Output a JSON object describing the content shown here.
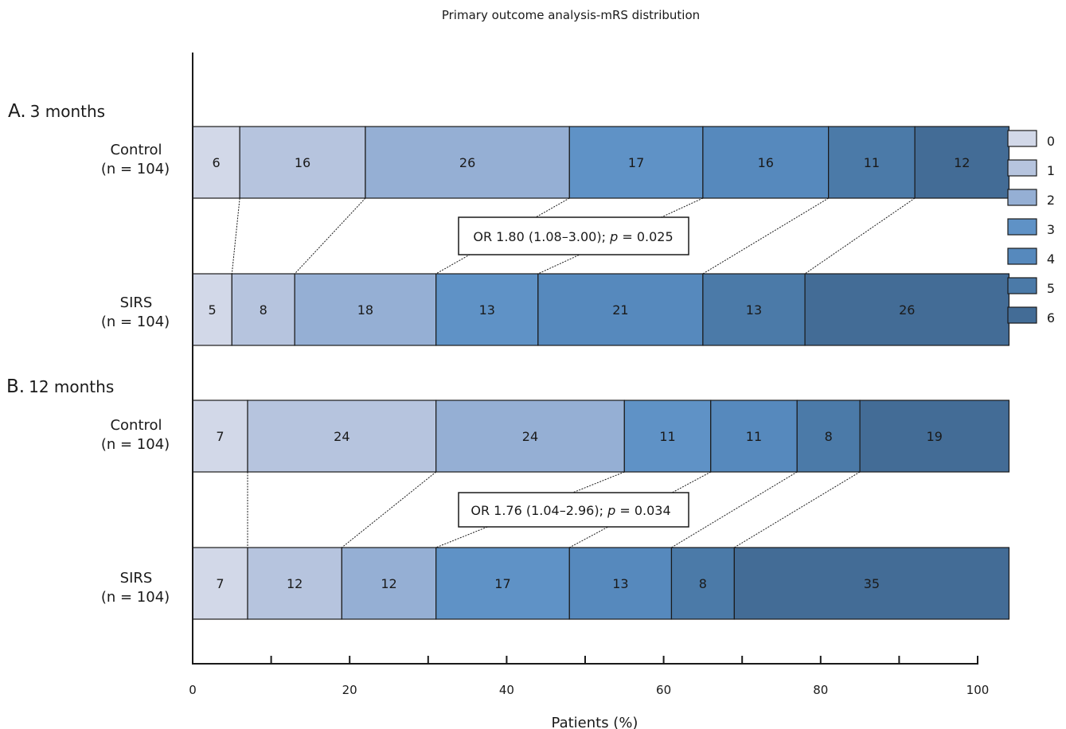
{
  "chart_data": {
    "type": "bar",
    "stacked": true,
    "orientation": "horizontal",
    "title": "Primary outcome analysis-mRS distribution",
    "xlabel": "Patients (%)",
    "xlim": [
      0,
      100
    ],
    "xticks": [
      "0",
      "20",
      "40",
      "60",
      "80",
      "100"
    ],
    "categories": [
      "0",
      "1",
      "2",
      "3",
      "4",
      "5",
      "6"
    ],
    "colors": [
      "#d2d8e8",
      "#b6c4de",
      "#95afd4",
      "#5f92c6",
      "#5689bd",
      "#4b7aa8",
      "#436c96"
    ],
    "legend_placement": "right",
    "panels": [
      {
        "letter": "A.",
        "label": "3 months",
        "or_text": "OR 1.80 (1.08–3.00); ",
        "p_label": "p",
        "p_text": " = 0.025",
        "groups": [
          {
            "name": "Control",
            "n": "(n = 104)",
            "values": [
              6,
              16,
              26,
              17,
              16,
              11,
              12
            ]
          },
          {
            "name": "SIRS",
            "n": "(n = 104)",
            "values": [
              5,
              8,
              18,
              13,
              21,
              13,
              26
            ]
          }
        ]
      },
      {
        "letter": "B.",
        "label": "12 months",
        "or_text": "OR 1.76 (1.04–2.96); ",
        "p_label": "p",
        "p_text": " = 0.034",
        "groups": [
          {
            "name": "Control",
            "n": "(n = 104)",
            "values": [
              7,
              24,
              24,
              11,
              11,
              8,
              19
            ]
          },
          {
            "name": "SIRS",
            "n": "(n = 104)",
            "values": [
              7,
              12,
              12,
              17,
              13,
              8,
              35
            ]
          }
        ]
      }
    ]
  }
}
